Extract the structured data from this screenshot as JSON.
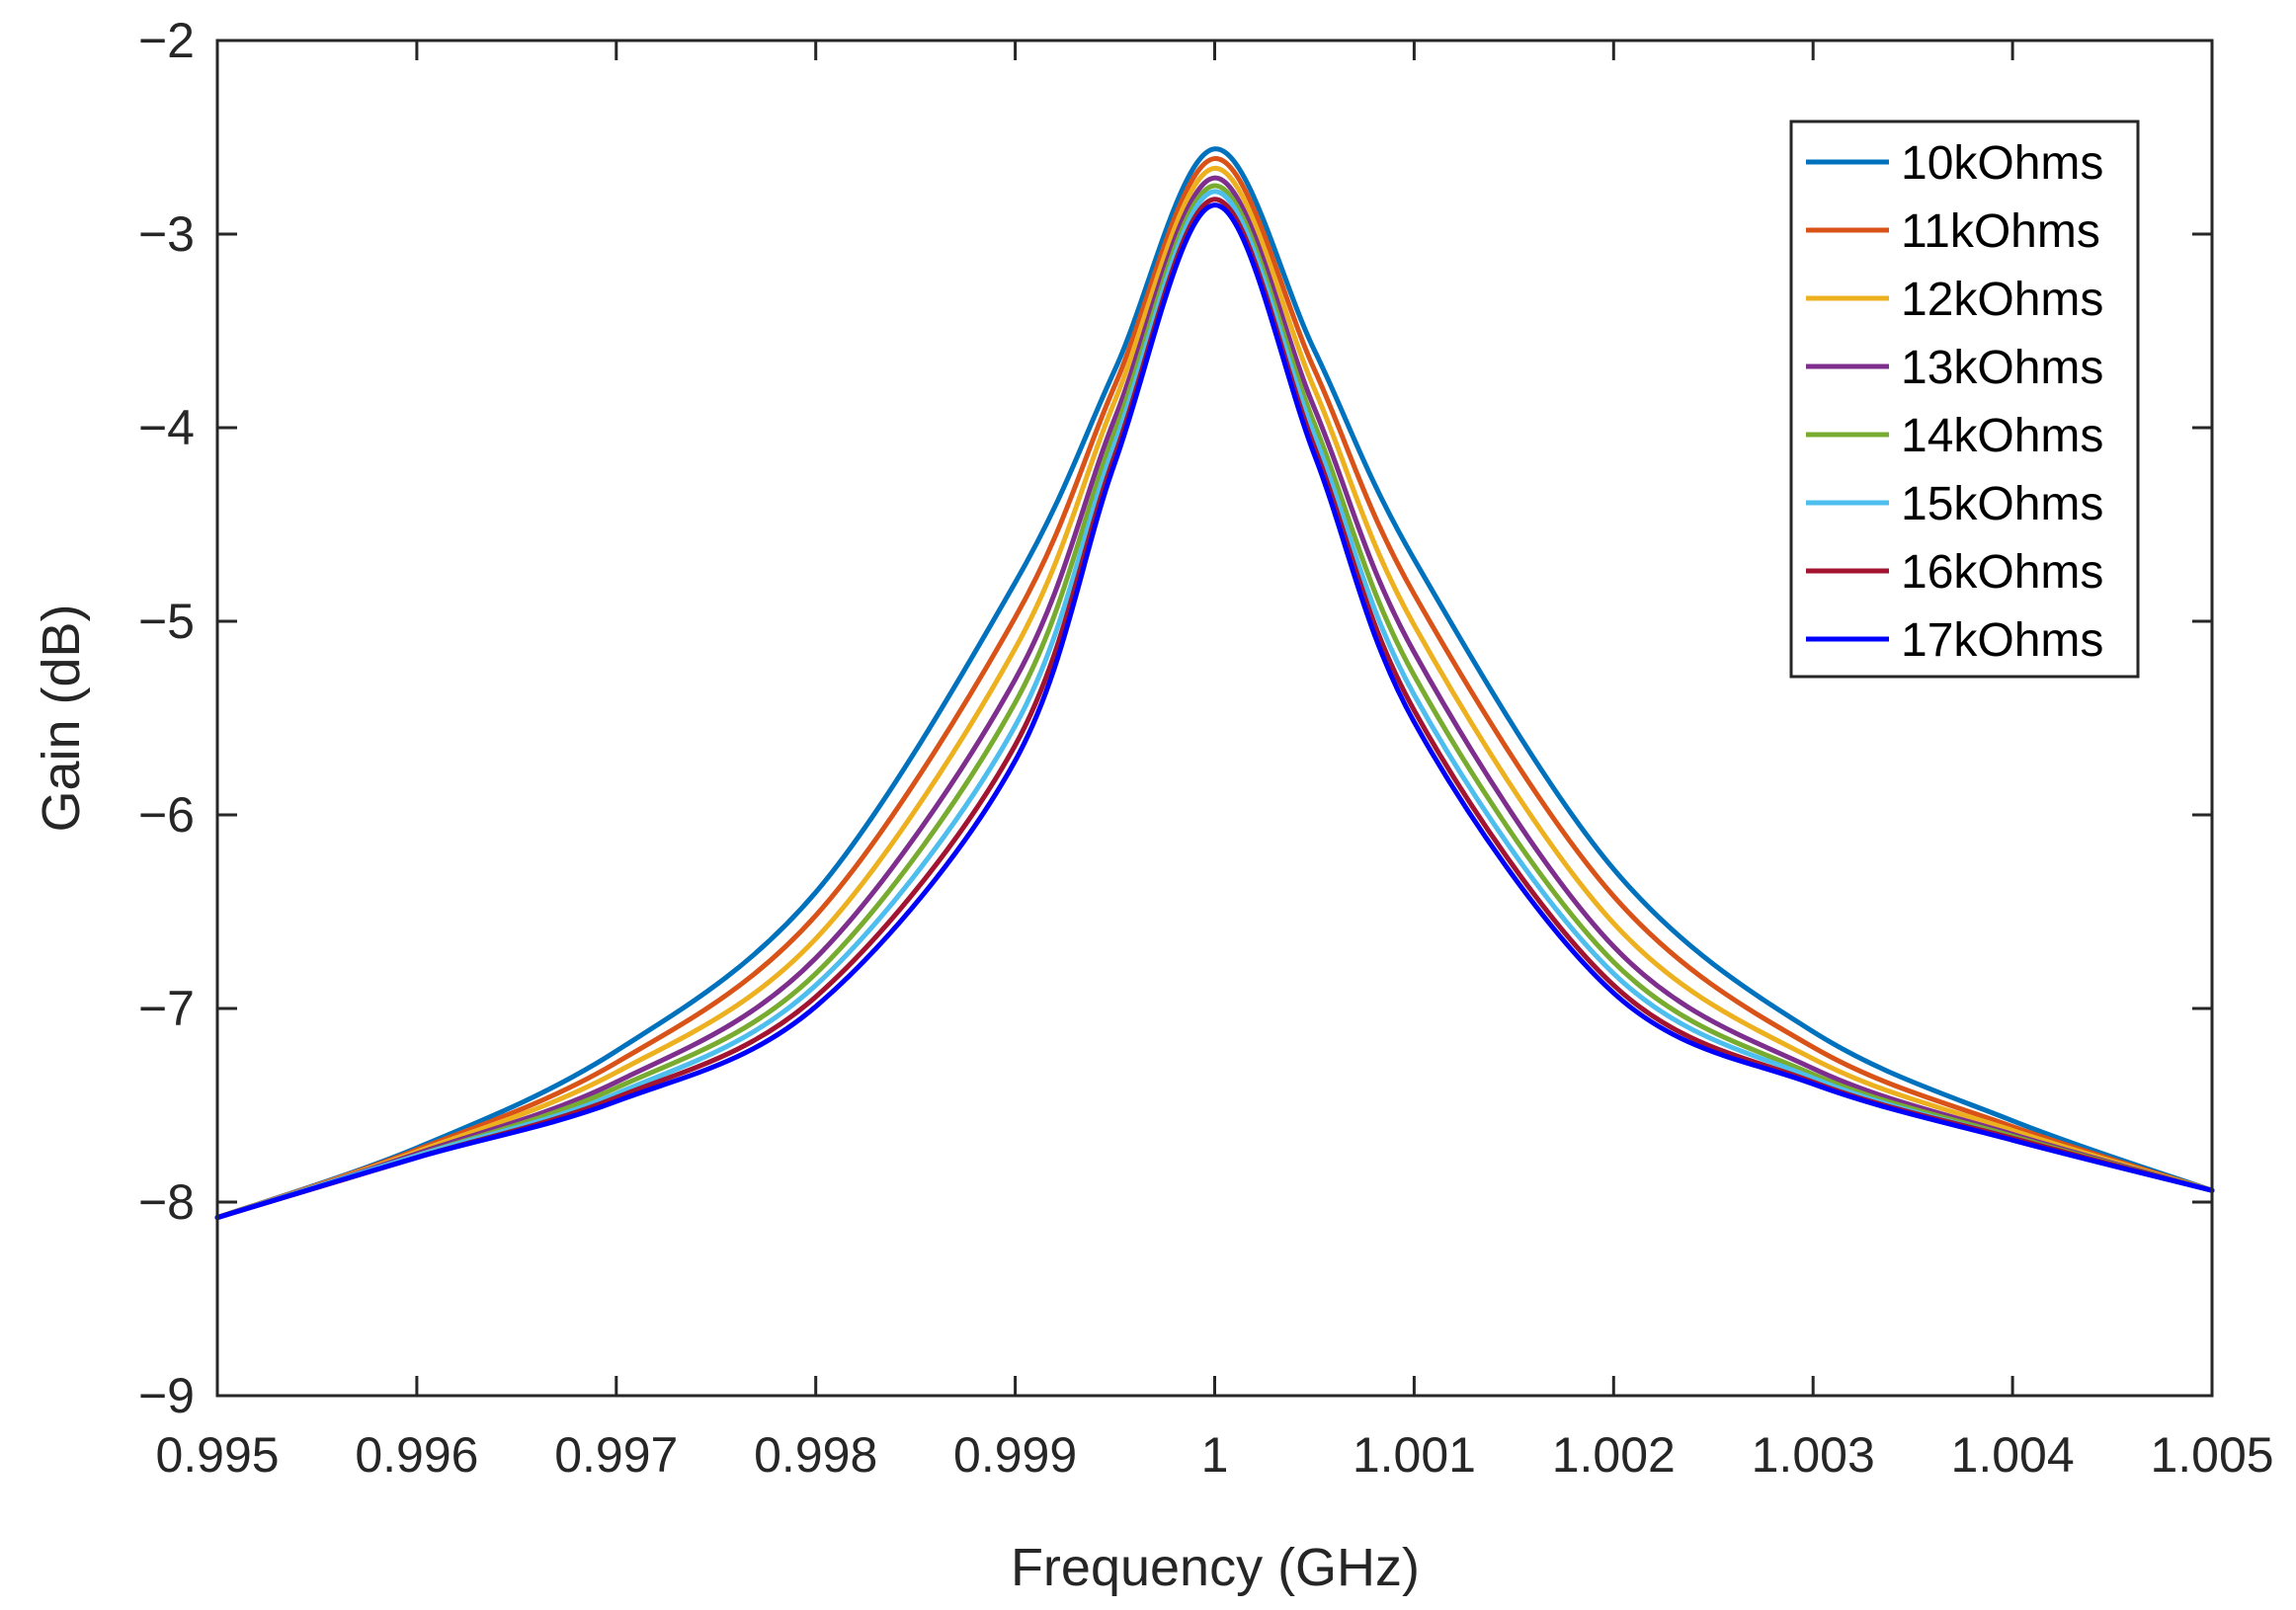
{
  "chart_data": {
    "type": "line",
    "title": "",
    "xlabel": "Frequency (GHz)",
    "ylabel": "Gain (dB)",
    "xlim": [
      0.995,
      1.005
    ],
    "ylim": [
      -9,
      -2
    ],
    "xticks": [
      0.995,
      0.996,
      0.997,
      0.998,
      0.999,
      1,
      1.001,
      1.002,
      1.003,
      1.004,
      1.005
    ],
    "xtick_labels": [
      "0.995",
      "0.996",
      "0.997",
      "0.998",
      "0.999",
      "1",
      "1.001",
      "1.002",
      "1.003",
      "1.004",
      "1.005"
    ],
    "yticks": [
      -2,
      -3,
      -4,
      -5,
      -6,
      -7,
      -8,
      -9
    ],
    "ytick_labels": [
      "−2",
      "−3",
      "−4",
      "−5",
      "−6",
      "−7",
      "−8",
      "−9"
    ],
    "grid": false,
    "legend_position": "top-right",
    "x": [
      0.995,
      0.996,
      0.997,
      0.998,
      0.999,
      0.9995,
      1.0,
      1.0005,
      1.001,
      1.002,
      1.003,
      1.004,
      1.005
    ],
    "series": [
      {
        "name": "10kOhms",
        "color": "#0072BD",
        "values": [
          -8.08,
          -7.72,
          -7.22,
          -6.4,
          -4.8,
          -3.7,
          -2.56,
          -3.6,
          -4.68,
          -6.28,
          -7.12,
          -7.58,
          -7.94
        ]
      },
      {
        "name": "11kOhms",
        "color": "#D95319",
        "values": [
          -8.08,
          -7.73,
          -7.28,
          -6.52,
          -4.98,
          -3.78,
          -2.61,
          -3.7,
          -4.86,
          -6.42,
          -7.2,
          -7.61,
          -7.94
        ]
      },
      {
        "name": "12kOhms",
        "color": "#EDB120",
        "values": [
          -8.08,
          -7.74,
          -7.33,
          -6.64,
          -5.14,
          -3.86,
          -2.66,
          -3.8,
          -5.02,
          -6.56,
          -7.26,
          -7.63,
          -7.94
        ]
      },
      {
        "name": "13kOhms",
        "color": "#7E2F8E",
        "values": [
          -8.08,
          -7.75,
          -7.38,
          -6.74,
          -5.3,
          -3.95,
          -2.71,
          -3.9,
          -5.16,
          -6.68,
          -7.31,
          -7.65,
          -7.94
        ]
      },
      {
        "name": "14kOhms",
        "color": "#77AC30",
        "values": [
          -8.08,
          -7.76,
          -7.41,
          -6.82,
          -5.42,
          -4.02,
          -2.75,
          -3.98,
          -5.28,
          -6.76,
          -7.34,
          -7.66,
          -7.94
        ]
      },
      {
        "name": "15kOhms",
        "color": "#4DBEEE",
        "values": [
          -8.08,
          -7.76,
          -7.44,
          -6.88,
          -5.54,
          -4.08,
          -2.78,
          -4.04,
          -5.38,
          -6.82,
          -7.36,
          -7.67,
          -7.94
        ]
      },
      {
        "name": "16kOhms",
        "color": "#A2142F",
        "values": [
          -8.08,
          -7.77,
          -7.46,
          -6.94,
          -5.64,
          -4.14,
          -2.82,
          -4.1,
          -5.46,
          -6.88,
          -7.38,
          -7.67,
          -7.94
        ]
      },
      {
        "name": "17kOhms",
        "color": "#0000FF",
        "values": [
          -8.08,
          -7.77,
          -7.48,
          -6.99,
          -5.72,
          -4.18,
          -2.85,
          -4.14,
          -5.52,
          -6.92,
          -7.39,
          -7.68,
          -7.94
        ]
      }
    ]
  }
}
